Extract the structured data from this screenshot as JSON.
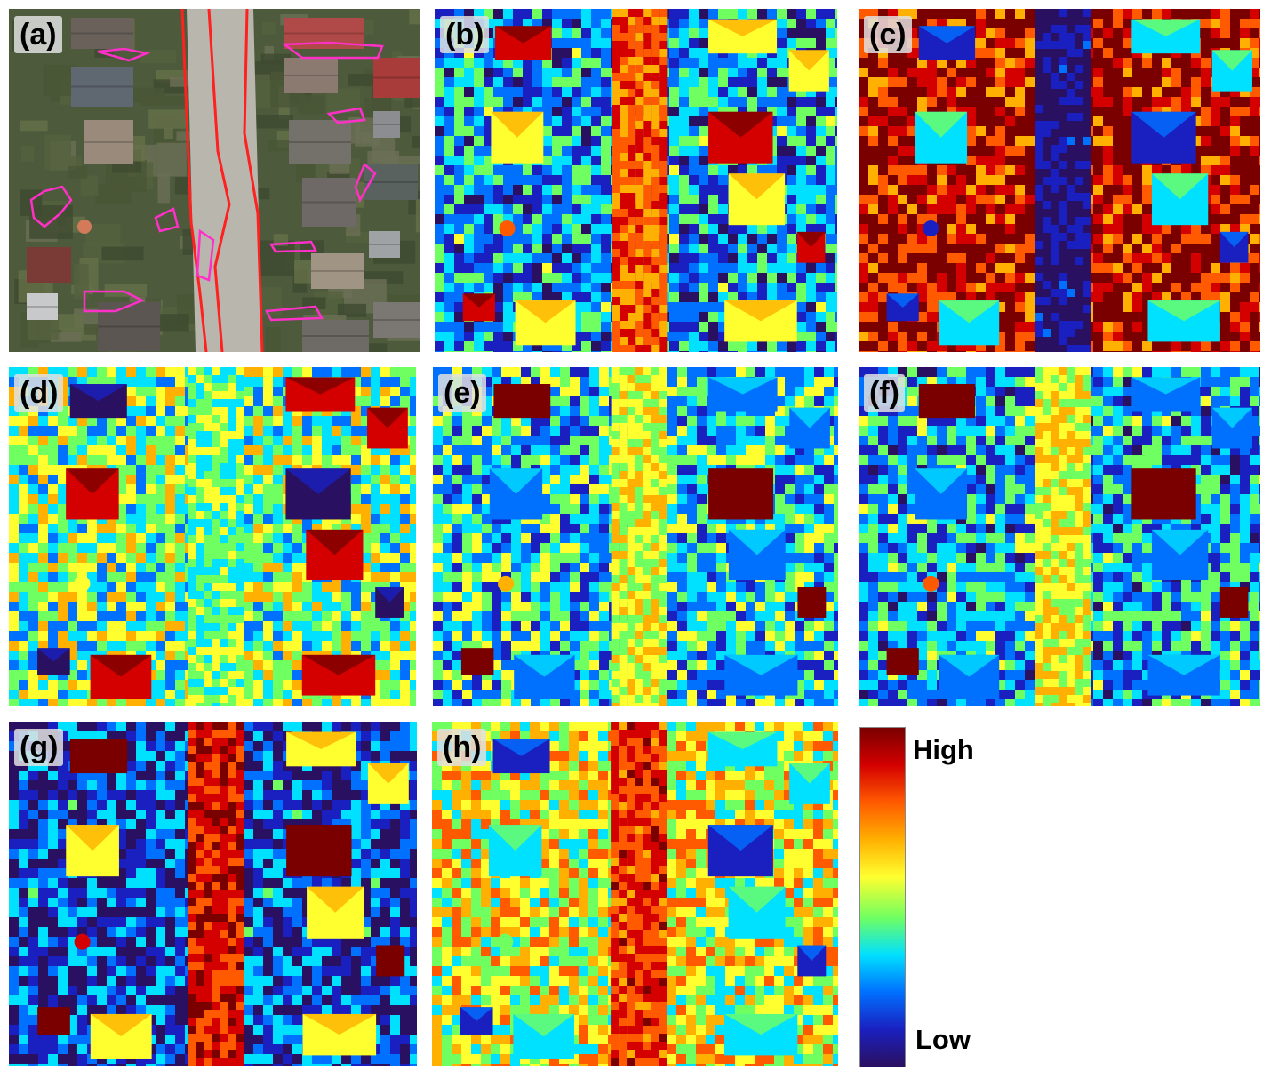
{
  "panels": [
    {
      "id": "a",
      "label": "(a)",
      "kind": "aerial"
    },
    {
      "id": "b",
      "label": "(b)",
      "kind": "heatmap",
      "variant": "blue-roof"
    },
    {
      "id": "c",
      "label": "(c)",
      "kind": "heatmap",
      "variant": "red-inverse"
    },
    {
      "id": "d",
      "label": "(d)",
      "kind": "heatmap",
      "variant": "mixed"
    },
    {
      "id": "e",
      "label": "(e)",
      "kind": "heatmap",
      "variant": "mixed"
    },
    {
      "id": "f",
      "label": "(f)",
      "kind": "heatmap",
      "variant": "mixed"
    },
    {
      "id": "g",
      "label": "(g)",
      "kind": "heatmap",
      "variant": "blue-road"
    },
    {
      "id": "h",
      "label": "(h)",
      "kind": "heatmap",
      "variant": "mixed"
    }
  ],
  "legend": {
    "high_label": "High",
    "low_label": "Low",
    "colors": [
      "#7a0000",
      "#d40000",
      "#ff5a00",
      "#ffb000",
      "#ffff30",
      "#70ff60",
      "#00e0ff",
      "#0070ff",
      "#1a20c0",
      "#2a1060"
    ]
  },
  "annotation_colors": {
    "road_outline": "#ff2020",
    "damage_outline": "#ff30c8"
  }
}
